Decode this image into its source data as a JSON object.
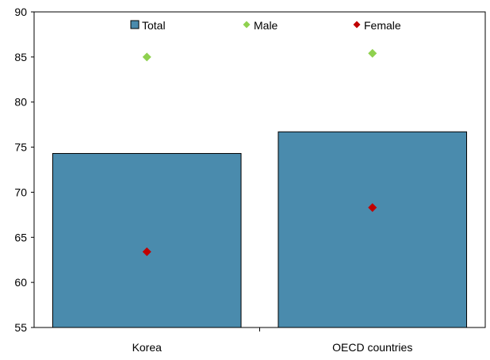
{
  "chart_data": {
    "type": "bar",
    "title": "",
    "xlabel": "",
    "ylabel": "",
    "categories": [
      "Korea",
      "OECD countries"
    ],
    "ylim": [
      55,
      90
    ],
    "yticks": [
      55,
      60,
      65,
      70,
      75,
      80,
      85,
      90
    ],
    "grid": false,
    "legend_position": "top",
    "series": [
      {
        "name": "Total",
        "kind": "bar",
        "color": "#4a8bad",
        "values": [
          74.3,
          76.7
        ]
      },
      {
        "name": "Male",
        "kind": "marker",
        "marker": "diamond",
        "color": "#8fd14f",
        "values": [
          85.0,
          85.4
        ]
      },
      {
        "name": "Female",
        "kind": "marker",
        "marker": "diamond",
        "color": "#c00000",
        "values": [
          63.4,
          68.3
        ]
      }
    ]
  }
}
